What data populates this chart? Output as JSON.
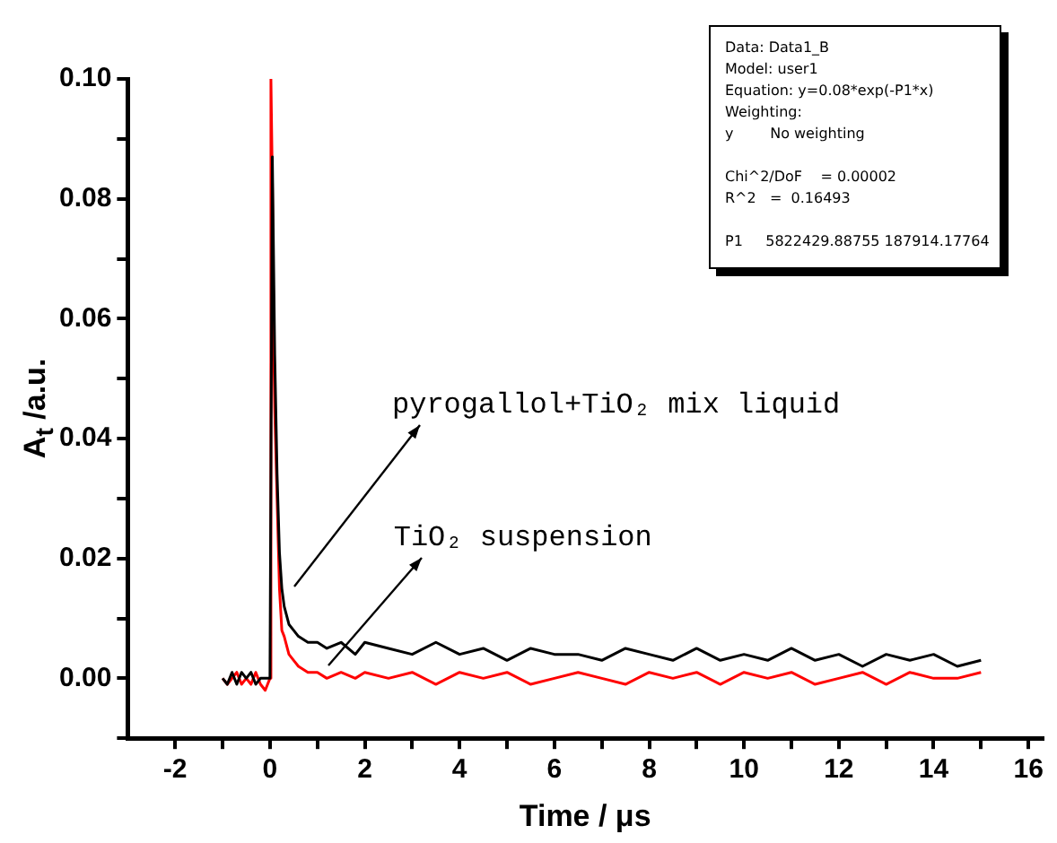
{
  "chart_data": {
    "type": "line",
    "xlabel": "Time / μs",
    "ylabel": "A$_{t}$ /a.u.",
    "xlim": [
      -3,
      16.3
    ],
    "xticks": [
      -2,
      {
        "value": -1,
        "label": null
      },
      0,
      {
        "value": 1,
        "label": null
      },
      2,
      {
        "value": 3,
        "label": null
      },
      4,
      {
        "value": 5,
        "label": null
      },
      6,
      {
        "value": 7,
        "label": null
      },
      8,
      {
        "value": 9,
        "label": null
      },
      10,
      {
        "value": 11,
        "label": null
      },
      12,
      {
        "value": 13,
        "label": null
      },
      14,
      {
        "value": 15,
        "label": null
      },
      16
    ],
    "ylim": [
      -0.01,
      0.1
    ],
    "yticks": [
      {
        "value": -0.01,
        "label": null
      },
      {
        "value": 0,
        "label": "0.00"
      },
      {
        "value": 0.01,
        "label": null
      },
      {
        "value": 0.02,
        "label": "0.02"
      },
      {
        "value": 0.03,
        "label": null
      },
      {
        "value": 0.04,
        "label": "0.04"
      },
      {
        "value": 0.05,
        "label": null
      },
      {
        "value": 0.06,
        "label": "0.06"
      },
      {
        "value": 0.07,
        "label": null
      },
      {
        "value": 0.08,
        "label": "0.08"
      },
      {
        "value": 0.09,
        "label": null
      },
      {
        "value": 0.1,
        "label": "0.10"
      }
    ],
    "grid": false,
    "legend": false,
    "marker": "none",
    "line_style": "solid",
    "series": [
      {
        "color": "#000000",
        "x": [
          -1,
          -0.9,
          -0.8,
          -0.7,
          -0.6,
          -0.5,
          -0.4,
          -0.3,
          -0.2,
          -0.1,
          0,
          0.05,
          0.1,
          0.15,
          0.2,
          0.25,
          0.3,
          0.4,
          0.5,
          0.6,
          0.8,
          1.0,
          1.2,
          1.5,
          1.8,
          2,
          2.5,
          3,
          3.5,
          4,
          4.5,
          5,
          5.5,
          6,
          6.5,
          7,
          7.5,
          8,
          8.5,
          9,
          9.5,
          10,
          10.5,
          11,
          11.5,
          12,
          12.5,
          13,
          13.5,
          14,
          14.5,
          15
        ],
        "values": [
          0.0,
          -0.001,
          0.001,
          -0.001,
          0.001,
          0.0,
          0.001,
          -0.001,
          0.0,
          0.0,
          0.0,
          0.087,
          0.054,
          0.034,
          0.021,
          0.015,
          0.012,
          0.009,
          0.008,
          0.007,
          0.006,
          0.006,
          0.005,
          0.006,
          0.004,
          0.006,
          0.005,
          0.004,
          0.006,
          0.004,
          0.005,
          0.003,
          0.005,
          0.004,
          0.004,
          0.003,
          0.005,
          0.004,
          0.003,
          0.005,
          0.003,
          0.004,
          0.003,
          0.005,
          0.003,
          0.004,
          0.002,
          0.004,
          0.003,
          0.004,
          0.002,
          0.003
        ]
      },
      {
        "color": "#ff0000",
        "x": [
          -1,
          -0.9,
          -0.8,
          -0.7,
          -0.6,
          -0.5,
          -0.4,
          -0.3,
          -0.2,
          -0.1,
          0,
          0.02,
          0.05,
          0.08,
          0.1,
          0.15,
          0.2,
          0.25,
          0.3,
          0.4,
          0.5,
          0.6,
          0.8,
          1.0,
          1.2,
          1.5,
          1.8,
          2,
          2.5,
          3,
          3.5,
          4,
          4.5,
          5,
          5.5,
          6,
          6.5,
          7,
          7.5,
          8,
          8.5,
          9,
          9.5,
          10,
          10.5,
          11,
          11.5,
          12,
          12.5,
          13,
          13.5,
          14,
          14.5,
          15
        ],
        "values": [
          0.0,
          -0.001,
          0.0,
          0.001,
          -0.001,
          0.0,
          -0.001,
          0.001,
          -0.001,
          -0.002,
          0.0,
          0.1,
          0.083,
          0.055,
          0.045,
          0.03,
          0.015,
          0.008,
          0.007,
          0.004,
          0.003,
          0.002,
          0.001,
          0.001,
          0.0,
          0.001,
          0.0,
          0.001,
          0.0,
          0.001,
          -0.001,
          0.001,
          0.0,
          0.001,
          -0.001,
          0.0,
          0.001,
          0.0,
          -0.001,
          0.001,
          0.0,
          0.001,
          -0.001,
          0.001,
          0.0,
          0.001,
          -0.001,
          0.0,
          0.001,
          -0.001,
          0.001,
          0.0,
          0.0,
          0.001
        ]
      }
    ],
    "annotations": [
      "Data: Data1_B\nModel: user1\nEquation: y=0.08*exp(-P1*x)\nWeighting:\ny        No weighting\n\nChi^2/DoF    = 0.00002\nR^2   =  0.16493\n\nP1     5822429.88755 187914.17764",
      "pyrogallol+TiO₂ mix liquid",
      "TiO₂ suspension"
    ]
  }
}
